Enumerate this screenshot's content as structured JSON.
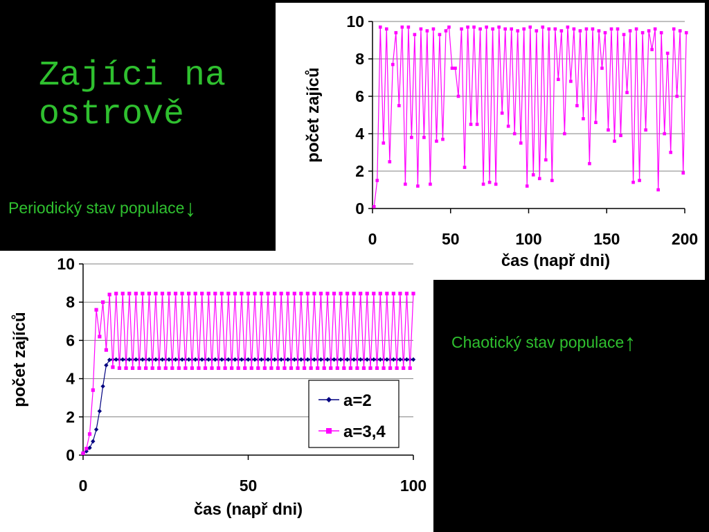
{
  "slide": {
    "title_line1": "Zajíci na",
    "title_line2": "ostrově",
    "caption_periodic": "Periodický stav populace",
    "caption_periodic_arrow": "↓",
    "caption_chaotic": "Chaotický stav populace",
    "caption_chaotic_arrow": "↑"
  },
  "colors": {
    "caption": "#2fc02f",
    "series_a2": "#000080",
    "series_a34": "#ff00ff",
    "grid": "#808080"
  },
  "chart_data": [
    {
      "type": "line",
      "xlabel": "čas (např dni)",
      "ylabel": "počet zajíců",
      "xlim": [
        0,
        200
      ],
      "ylim": [
        0,
        10
      ],
      "xticks": [
        "0",
        "50",
        "100",
        "150",
        "200"
      ],
      "yticks": [
        "0",
        "2",
        "4",
        "6",
        "8",
        "10"
      ],
      "grid": "horizontal",
      "legend": "none",
      "series": [
        {
          "x_start": 1,
          "x_step": 2,
          "values": [
            0.1,
            1.5,
            9.7,
            3.5,
            9.6,
            2.5,
            7.7,
            9.4,
            5.5,
            9.7,
            1.3,
            9.7,
            3.8,
            9.3,
            1.2,
            9.6,
            3.8,
            9.5,
            1.3,
            9.6,
            3.6,
            9.3,
            3.7,
            9.5,
            9.7,
            7.5,
            7.5,
            6.0,
            9.6,
            2.2,
            9.7,
            4.5,
            9.7,
            4.5,
            9.6,
            1.3,
            9.7,
            1.4,
            9.6,
            1.3,
            9.7,
            5.1,
            9.6,
            4.4,
            9.6,
            4.0,
            9.5,
            3.5,
            9.6,
            1.2,
            9.7,
            1.8,
            9.5,
            1.6,
            9.7,
            2.6,
            9.6,
            1.5,
            9.6,
            6.9,
            9.5,
            4.0,
            9.7,
            6.8,
            9.6,
            5.5,
            9.5,
            4.8,
            9.6,
            2.4,
            9.6,
            4.6,
            9.5,
            7.5,
            9.4,
            4.2,
            9.6,
            3.6,
            9.6,
            3.9,
            9.3,
            6.2,
            9.5,
            1.4,
            9.6,
            1.5,
            9.4,
            4.2,
            9.5,
            8.5,
            9.6,
            1.0,
            9.4,
            4.0,
            8.3,
            3.0,
            9.6,
            6.0,
            9.5,
            1.9,
            9.4
          ]
        }
      ]
    },
    {
      "type": "line",
      "xlabel": "čas (např dni)",
      "ylabel": "počet zajíců",
      "xlim": [
        0,
        100
      ],
      "ylim": [
        0,
        10
      ],
      "xticks": [
        "0",
        "50",
        "100"
      ],
      "yticks": [
        "0",
        "2",
        "4",
        "6",
        "8",
        "10"
      ],
      "grid": "horizontal",
      "legend": "inside lower-right",
      "series": [
        {
          "name": "a=2",
          "marker": "diamond",
          "x_start": 0,
          "x_step": 1,
          "values": [
            0.1,
            0.2,
            0.38,
            0.72,
            1.34,
            2.3,
            3.6,
            4.7,
            4.98,
            5.0,
            5.0,
            5.0,
            5.0,
            5.0,
            5.0,
            5.0,
            5.0,
            5.0,
            5.0,
            5.0,
            5.0,
            5.0,
            5.0,
            5.0,
            5.0,
            5.0,
            5.0,
            5.0,
            5.0,
            5.0,
            5.0,
            5.0,
            5.0,
            5.0,
            5.0,
            5.0,
            5.0,
            5.0,
            5.0,
            5.0,
            5.0,
            5.0,
            5.0,
            5.0,
            5.0,
            5.0,
            5.0,
            5.0,
            5.0,
            5.0,
            5.0,
            5.0,
            5.0,
            5.0,
            5.0,
            5.0,
            5.0,
            5.0,
            5.0,
            5.0,
            5.0,
            5.0,
            5.0,
            5.0,
            5.0,
            5.0,
            5.0,
            5.0,
            5.0,
            5.0,
            5.0,
            5.0,
            5.0,
            5.0,
            5.0,
            5.0,
            5.0,
            5.0,
            5.0,
            5.0,
            5.0,
            5.0,
            5.0,
            5.0,
            5.0,
            5.0,
            5.0,
            5.0,
            5.0,
            5.0,
            5.0,
            5.0,
            5.0,
            5.0,
            5.0,
            5.0,
            5.0,
            5.0,
            5.0,
            5.0,
            5.0
          ]
        },
        {
          "name": "a=3,4",
          "marker": "square",
          "x_start": 0,
          "x_step": 1,
          "values": [
            0.1,
            0.34,
            1.1,
            3.4,
            7.6,
            6.2,
            8.0,
            5.5,
            8.4,
            4.6,
            8.45,
            4.55,
            8.45,
            4.55,
            8.45,
            4.55,
            8.45,
            4.55,
            8.45,
            4.55,
            8.45,
            4.55,
            8.45,
            4.55,
            8.45,
            4.55,
            8.45,
            4.55,
            8.45,
            4.55,
            8.45,
            4.55,
            8.45,
            4.55,
            8.45,
            4.55,
            8.45,
            4.55,
            8.45,
            4.55,
            8.45,
            4.55,
            8.45,
            4.55,
            8.45,
            4.55,
            8.45,
            4.55,
            8.45,
            4.55,
            8.45,
            4.55,
            8.45,
            4.55,
            8.45,
            4.55,
            8.45,
            4.55,
            8.45,
            4.55,
            8.45,
            4.55,
            8.45,
            4.55,
            8.45,
            4.55,
            8.45,
            4.55,
            8.45,
            4.55,
            8.45,
            4.55,
            8.45,
            4.55,
            8.45,
            4.55,
            8.45,
            4.55,
            8.45,
            4.55,
            8.45,
            4.55,
            8.45,
            4.55,
            8.45,
            4.55,
            8.45,
            4.55,
            8.45,
            4.55,
            8.45,
            4.55,
            8.45,
            4.55,
            8.45,
            4.55,
            8.45,
            4.55,
            8.45,
            4.55,
            8.45
          ]
        }
      ]
    }
  ]
}
